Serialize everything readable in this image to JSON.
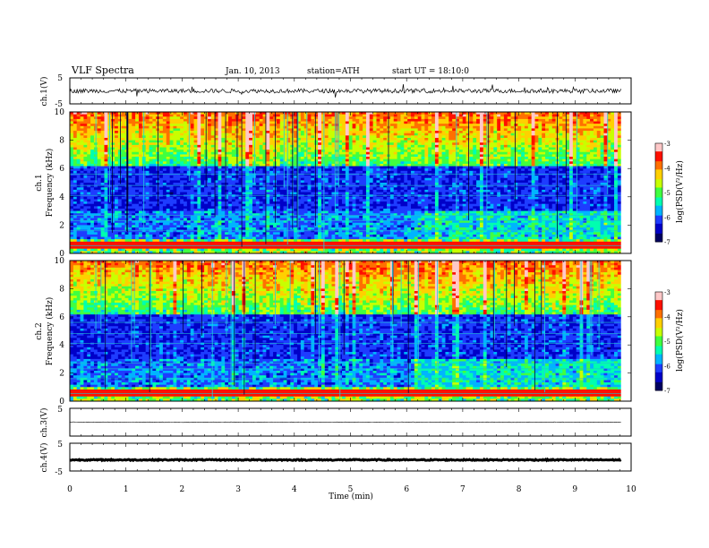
{
  "header": {
    "title": "VLF Spectra",
    "date": "Jan. 10, 2013",
    "station": "station=ATH",
    "start": "start UT =  18:10:0"
  },
  "colors": {
    "cmap": [
      "#000060",
      "#0000c8",
      "#1e3cff",
      "#00b4ff",
      "#00ffb0",
      "#40ff40",
      "#c8ff00",
      "#ffd000",
      "#ff7000",
      "#ff1000",
      "#ffc8c8"
    ]
  },
  "chart_data": [
    {
      "type": "line",
      "panel": "ch1-waveform",
      "ylabel": "ch.1(V)",
      "ylim": [
        -5,
        5
      ],
      "yticks": [
        5,
        -5
      ],
      "description_values": {
        "mean": 0,
        "amplitude": 0.8
      }
    },
    {
      "type": "heatmap",
      "panel": "ch1-spectrogram",
      "ylabel": "ch.1\nFrequency (kHz)",
      "ylabel_line1": "ch.1",
      "ylabel_line2": "Frequency (kHz)",
      "ylim": [
        0,
        10
      ],
      "yticks": [
        0,
        2,
        4,
        6,
        8,
        10
      ],
      "colorbar": {
        "label": "log(PSD(V²/Hz)",
        "ticks": [
          -3,
          -4,
          -5,
          -6,
          -7
        ],
        "range": [
          -7,
          -3
        ]
      }
    },
    {
      "type": "heatmap",
      "panel": "ch2-spectrogram",
      "ylabel": "ch.2\nFrequency (kHz)",
      "ylabel_line1": "ch.2",
      "ylabel_line2": "Frequency (kHz)",
      "ylim": [
        0,
        10
      ],
      "yticks": [
        0,
        2,
        4,
        6,
        8,
        10
      ],
      "colorbar": {
        "label": "log(PSD(V²/Hz)",
        "ticks": [
          -3,
          -4,
          -5,
          -6,
          -7
        ],
        "range": [
          -7,
          -3
        ]
      }
    },
    {
      "type": "line",
      "panel": "ch3-waveform",
      "ylabel": "ch.3(V)",
      "ylim": [
        -5,
        5
      ],
      "yticks": [
        5
      ],
      "description_values": {
        "mean": 0,
        "amplitude": 0.1
      }
    },
    {
      "type": "line",
      "panel": "ch4-waveform",
      "ylabel": "ch.4(V)",
      "ylim": [
        -5,
        5
      ],
      "yticks": [
        5,
        -5
      ],
      "description_values": {
        "mean": -1,
        "amplitude": 0.2
      }
    }
  ],
  "xaxis": {
    "label": "Time (min)",
    "ticks": [
      "0",
      "1",
      "2",
      "3",
      "4",
      "5",
      "6",
      "7",
      "8",
      "9",
      "10"
    ],
    "range": [
      0,
      10
    ],
    "data_end": 9.82
  },
  "tick_text": {
    "p5": "5",
    "m5": "-5",
    "f0": "0",
    "f2": "2",
    "f4": "4",
    "f6": "6",
    "f8": "8",
    "f10": "10",
    "c3": "-3",
    "c4": "-4",
    "c5": "-5",
    "c6": "-6",
    "c7": "-7"
  }
}
